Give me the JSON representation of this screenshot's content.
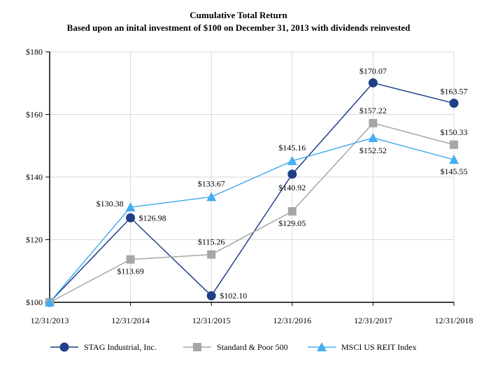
{
  "chart_data": {
    "type": "line",
    "title": "Cumulative Total Return",
    "subtitle": "Based upon an inital investment of $100 on December 31, 2013 with dividends reinvested",
    "categories": [
      "12/31/2013",
      "12/31/2014",
      "12/31/2015",
      "12/31/2016",
      "12/31/2017",
      "12/31/2018"
    ],
    "ylim": [
      100,
      180
    ],
    "yticks": [
      100,
      120,
      140,
      160,
      180
    ],
    "ytick_labels": [
      "$100",
      "$120",
      "$140",
      "$160",
      "$180"
    ],
    "grid": true,
    "legend_placement": "bottom",
    "series": [
      {
        "name": "STAG Industrial, Inc.",
        "color": "#1f3f86",
        "marker": "circle",
        "values": [
          100,
          126.98,
          102.1,
          140.92,
          170.07,
          163.57
        ],
        "labels": [
          "",
          "$126.98",
          "$102.10",
          "$140.92",
          "$170.07",
          "$163.57"
        ]
      },
      {
        "name": "Standard & Poor 500",
        "color": "#a6a6a6",
        "marker": "square",
        "values": [
          100,
          113.69,
          115.26,
          129.05,
          157.22,
          150.33
        ],
        "labels": [
          "",
          "$113.69",
          "$115.26",
          "$129.05",
          "$157.22",
          "$150.33"
        ]
      },
      {
        "name": "MSCI US REIT Index",
        "color": "#45adf0",
        "marker": "triangle",
        "values": [
          100,
          130.38,
          133.67,
          145.16,
          152.52,
          145.55
        ],
        "labels": [
          "",
          "$130.38",
          "$133.67",
          "$145.16",
          "$152.52",
          "$145.55"
        ]
      }
    ]
  }
}
